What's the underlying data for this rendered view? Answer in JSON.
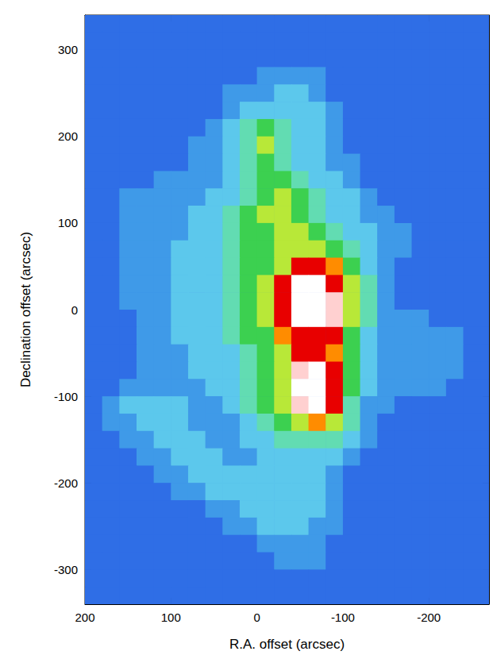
{
  "chart_data": {
    "type": "heatmap",
    "xlabel": "R.A. offset (arcsec)",
    "ylabel": "Declination offset (arcsec)",
    "xlim": [
      200,
      -270
    ],
    "ylim": [
      -340,
      340
    ],
    "xticks": [
      200,
      100,
      0,
      -100,
      -200
    ],
    "yticks": [
      -300,
      -200,
      -100,
      0,
      100,
      200,
      300
    ],
    "grid": false,
    "zlim": [
      0,
      10
    ],
    "x": [
      190,
      170,
      150,
      130,
      110,
      90,
      70,
      50,
      30,
      10,
      -10,
      -30,
      -50,
      -70,
      -90,
      -110,
      -130,
      -150,
      -170,
      -190,
      -210,
      -230,
      -250,
      -270
    ],
    "y": [
      330,
      310,
      290,
      270,
      250,
      230,
      210,
      190,
      170,
      150,
      130,
      110,
      90,
      70,
      50,
      30,
      10,
      -10,
      -30,
      -50,
      -70,
      -90,
      -110,
      -130,
      -150,
      -170,
      -190,
      -210,
      -230,
      -250,
      -270,
      -290,
      -310,
      -330
    ],
    "cells": [
      [
        1,
        1,
        1,
        1,
        1,
        1,
        1,
        1,
        1,
        1,
        1,
        1,
        1,
        1,
        1,
        1,
        1,
        1,
        1,
        1,
        1,
        1,
        1,
        1
      ],
      [
        1,
        1,
        1,
        1,
        1,
        1,
        1,
        1,
        1,
        1,
        1,
        1,
        1,
        1,
        1,
        1,
        1,
        1,
        1,
        1,
        1,
        1,
        1,
        1
      ],
      [
        1,
        1,
        1,
        1,
        1,
        1,
        1,
        1,
        1,
        1,
        1,
        1,
        1,
        1,
        1,
        1,
        1,
        1,
        1,
        1,
        1,
        1,
        1,
        1
      ],
      [
        1,
        1,
        1,
        1,
        1,
        1,
        1,
        1,
        1,
        1,
        2,
        2,
        2,
        2,
        1,
        1,
        1,
        1,
        1,
        1,
        1,
        1,
        1,
        1
      ],
      [
        1,
        1,
        1,
        1,
        1,
        1,
        1,
        1,
        2,
        2,
        2,
        3,
        3,
        2,
        1,
        1,
        1,
        1,
        1,
        1,
        1,
        1,
        1,
        1
      ],
      [
        1,
        1,
        1,
        1,
        1,
        1,
        1,
        1,
        2,
        3,
        3,
        3,
        3,
        3,
        2,
        1,
        1,
        1,
        1,
        1,
        1,
        1,
        1,
        1
      ],
      [
        1,
        1,
        1,
        1,
        1,
        1,
        1,
        2,
        3,
        4,
        5,
        4,
        3,
        3,
        2,
        1,
        1,
        1,
        1,
        1,
        1,
        1,
        1,
        1
      ],
      [
        1,
        1,
        1,
        1,
        1,
        1,
        2,
        2,
        3,
        4,
        6,
        4,
        3,
        3,
        2,
        1,
        1,
        1,
        1,
        1,
        1,
        1,
        1,
        1
      ],
      [
        1,
        1,
        1,
        1,
        1,
        1,
        2,
        2,
        3,
        4,
        5,
        4,
        3,
        3,
        2,
        2,
        1,
        1,
        1,
        1,
        1,
        1,
        1,
        1
      ],
      [
        1,
        1,
        1,
        1,
        2,
        2,
        2,
        2,
        3,
        4,
        5,
        5,
        4,
        3,
        3,
        2,
        1,
        1,
        1,
        1,
        1,
        1,
        1,
        1
      ],
      [
        1,
        1,
        2,
        2,
        2,
        2,
        2,
        3,
        3,
        4,
        5,
        6,
        5,
        4,
        3,
        3,
        2,
        1,
        1,
        1,
        1,
        1,
        1,
        1
      ],
      [
        1,
        1,
        2,
        2,
        2,
        2,
        3,
        3,
        4,
        5,
        6,
        6,
        5,
        4,
        3,
        3,
        2,
        2,
        1,
        1,
        1,
        1,
        1,
        1
      ],
      [
        1,
        1,
        2,
        2,
        2,
        2,
        3,
        3,
        4,
        5,
        5,
        6,
        6,
        5,
        4,
        3,
        3,
        2,
        2,
        1,
        1,
        1,
        1,
        1
      ],
      [
        1,
        1,
        2,
        2,
        2,
        3,
        3,
        3,
        4,
        5,
        5,
        6,
        6,
        6,
        5,
        4,
        3,
        2,
        2,
        1,
        1,
        1,
        1,
        1
      ],
      [
        1,
        1,
        2,
        2,
        2,
        3,
        3,
        3,
        4,
        5,
        5,
        6,
        8,
        8,
        7,
        5,
        3,
        2,
        1,
        1,
        1,
        1,
        1,
        1
      ],
      [
        1,
        1,
        2,
        2,
        2,
        3,
        3,
        3,
        4,
        5,
        6,
        8,
        10,
        10,
        8,
        6,
        4,
        2,
        1,
        1,
        1,
        1,
        1,
        1
      ],
      [
        1,
        1,
        2,
        2,
        2,
        3,
        3,
        3,
        4,
        5,
        6,
        8,
        10,
        10,
        9,
        6,
        4,
        2,
        1,
        1,
        1,
        1,
        1,
        1
      ],
      [
        1,
        1,
        1,
        2,
        2,
        3,
        3,
        3,
        4,
        5,
        6,
        8,
        10,
        10,
        9,
        6,
        4,
        2,
        2,
        2,
        1,
        1,
        1,
        1
      ],
      [
        1,
        1,
        1,
        2,
        2,
        3,
        3,
        3,
        4,
        5,
        5,
        7,
        8,
        8,
        8,
        5,
        3,
        2,
        2,
        2,
        2,
        2,
        1,
        1
      ],
      [
        1,
        1,
        1,
        2,
        2,
        2,
        3,
        3,
        3,
        4,
        5,
        6,
        8,
        8,
        7,
        5,
        3,
        2,
        2,
        2,
        2,
        2,
        1,
        1
      ],
      [
        1,
        1,
        1,
        2,
        2,
        2,
        3,
        3,
        3,
        4,
        5,
        6,
        9,
        10,
        8,
        5,
        3,
        2,
        2,
        2,
        2,
        2,
        1,
        1
      ],
      [
        1,
        1,
        2,
        2,
        2,
        2,
        2,
        3,
        3,
        4,
        5,
        6,
        10,
        10,
        8,
        5,
        3,
        2,
        2,
        2,
        2,
        1,
        1,
        1
      ],
      [
        1,
        2,
        3,
        3,
        3,
        3,
        2,
        2,
        3,
        4,
        5,
        6,
        9,
        10,
        8,
        4,
        2,
        2,
        1,
        1,
        1,
        1,
        1,
        1
      ],
      [
        1,
        2,
        2,
        3,
        3,
        3,
        2,
        2,
        2,
        3,
        4,
        5,
        6,
        7,
        6,
        4,
        2,
        1,
        1,
        1,
        1,
        1,
        1,
        1
      ],
      [
        1,
        1,
        2,
        2,
        3,
        3,
        3,
        2,
        2,
        3,
        3,
        4,
        4,
        4,
        4,
        3,
        2,
        1,
        1,
        1,
        1,
        1,
        1,
        1
      ],
      [
        1,
        1,
        1,
        2,
        2,
        3,
        3,
        3,
        2,
        2,
        3,
        3,
        3,
        3,
        3,
        2,
        1,
        1,
        1,
        1,
        1,
        1,
        1,
        1
      ],
      [
        1,
        1,
        1,
        1,
        2,
        2,
        3,
        3,
        3,
        3,
        3,
        3,
        3,
        3,
        2,
        1,
        1,
        1,
        1,
        1,
        1,
        1,
        1,
        1
      ],
      [
        1,
        1,
        1,
        1,
        1,
        2,
        2,
        3,
        3,
        3,
        3,
        3,
        3,
        3,
        2,
        1,
        1,
        1,
        1,
        1,
        1,
        1,
        1,
        1
      ],
      [
        1,
        1,
        1,
        1,
        1,
        1,
        1,
        2,
        2,
        3,
        3,
        3,
        3,
        3,
        2,
        1,
        1,
        1,
        1,
        1,
        1,
        1,
        1,
        1
      ],
      [
        1,
        1,
        1,
        1,
        1,
        1,
        1,
        1,
        2,
        2,
        3,
        3,
        3,
        2,
        2,
        1,
        1,
        1,
        1,
        1,
        1,
        1,
        1,
        1
      ],
      [
        1,
        1,
        1,
        1,
        1,
        1,
        1,
        1,
        1,
        1,
        2,
        2,
        2,
        2,
        1,
        1,
        1,
        1,
        1,
        1,
        1,
        1,
        1,
        1
      ],
      [
        1,
        1,
        1,
        1,
        1,
        1,
        1,
        1,
        1,
        1,
        1,
        2,
        2,
        2,
        1,
        1,
        1,
        1,
        1,
        1,
        1,
        1,
        1,
        1
      ],
      [
        1,
        1,
        1,
        1,
        1,
        1,
        1,
        1,
        1,
        1,
        1,
        1,
        1,
        1,
        1,
        1,
        1,
        1,
        1,
        1,
        1,
        1,
        1,
        1
      ],
      [
        1,
        1,
        1,
        1,
        1,
        1,
        1,
        1,
        1,
        1,
        1,
        1,
        1,
        1,
        1,
        1,
        1,
        1,
        1,
        1,
        1,
        1,
        1,
        1
      ]
    ]
  }
}
